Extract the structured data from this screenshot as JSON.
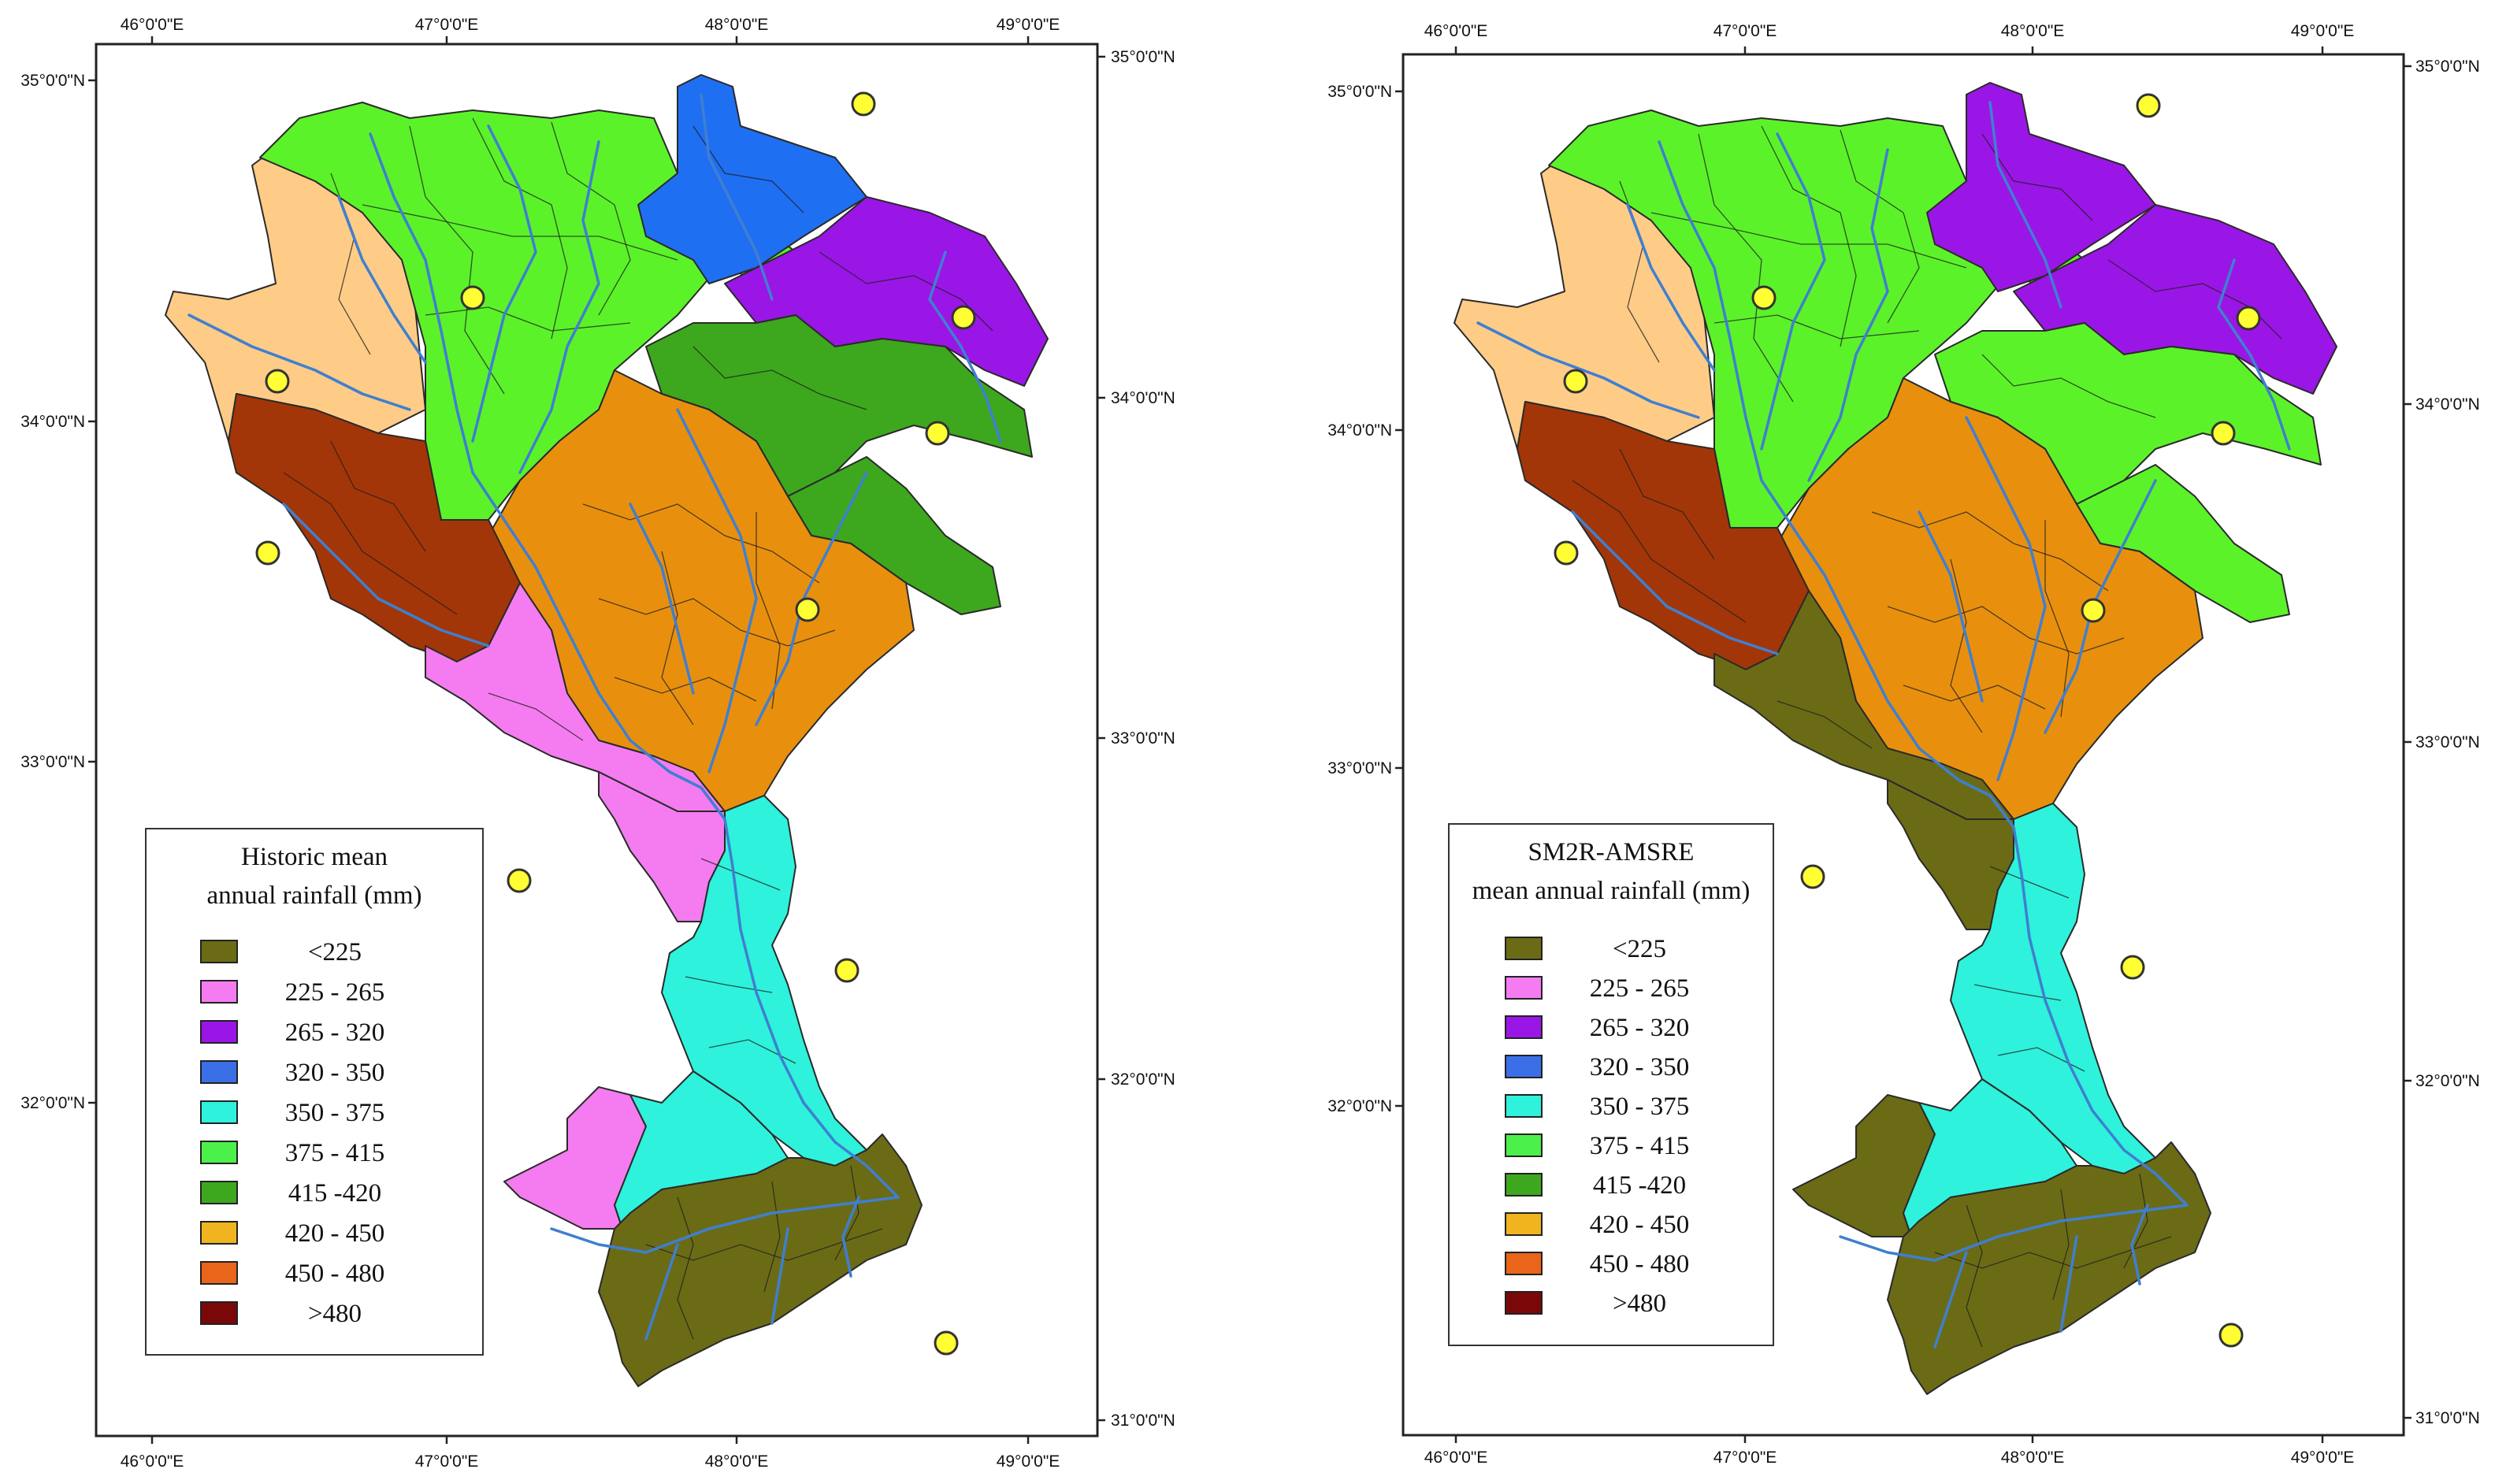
{
  "colors": {
    "<225": "#6b6b16",
    "225 - 265": "#f47cf0",
    "265 - 320": "#9a16e6",
    "320 - 350": "#1f6ff2",
    "350 - 375": "#2ef2dc",
    "375 - 415": "#5cf22a",
    "415 -420": "#3da81e",
    "420 - 450": "#e8900e",
    "450 - 480": "#e8651a",
    ">480": "#a33608",
    "hill": "#ffcc88",
    "river": "#3f7fd0",
    "station": "#ffff33"
  },
  "legend_items": [
    {
      "label": "<225",
      "color": "#6b6b16"
    },
    {
      "label": "225 - 265",
      "color": "#f47cf0"
    },
    {
      "label": "265 - 320",
      "color": "#9a16e6"
    },
    {
      "label": "320 - 350",
      "color": "#3a6fe8"
    },
    {
      "label": "350 - 375",
      "color": "#2ef2dc"
    },
    {
      "label": "375 - 415",
      "color": "#4cf04a"
    },
    {
      "label": "415 -420",
      "color": "#3da81e"
    },
    {
      "label": "420 - 450",
      "color": "#f0b41e"
    },
    {
      "label": "450 - 480",
      "color": "#e8651a"
    },
    {
      "label": ">480",
      "color": "#7a0808"
    }
  ],
  "maps": [
    {
      "legend_title": [
        "Historic mean",
        "annual rainfall (mm)"
      ],
      "top_lon_labels": [
        "46°0'0\"E",
        "47°0'0\"E",
        "48°0'0\"E",
        "49°0'0\"E"
      ],
      "bottom_lon_labels": [
        "46°0'0\"E",
        "47°0'0\"E",
        "48°0'0\"E",
        "49°0'0\"E"
      ],
      "left_lat_labels": [
        "35°0'0\"N",
        "34°0'0\"N",
        "33°0'0\"N",
        "32°0'0\"N"
      ],
      "right_lat_labels": [
        "35°0'0\"N",
        "34°0'0\"N",
        "33°0'0\"N",
        "32°0'0\"N",
        "31°0'0\"N"
      ],
      "zones": {
        "northwest_strip": "hill",
        "main_north": "375 - 415",
        "north_cap": "320 - 350",
        "northeast": "265 - 320",
        "east_mid": "415 -420",
        "east_tail": "415 -420",
        "central": "420 - 450",
        "southwest_block": ">480",
        "river_corridor": "225 - 265",
        "narrow_upper": "225 - 265",
        "south_channel": "350 - 375",
        "southwest_lobe": "225 - 265",
        "south_mid": "350 - 375",
        "south_base": "<225"
      }
    },
    {
      "legend_title": [
        "SM2R-AMSRE",
        "mean annual rainfall (mm)"
      ],
      "top_lon_labels": [
        "46°0'0\"E",
        "47°0'0\"E",
        "48°0'0\"E",
        "49°0'0\"E"
      ],
      "bottom_lon_labels": [
        "46°0'0\"E",
        "47°0'0\"E",
        "48°0'0\"E",
        "49°0'0\"E"
      ],
      "left_lat_labels": [
        "35°0'0\"N",
        "34°0'0\"N",
        "33°0'0\"N",
        "32°0'0\"N"
      ],
      "right_lat_labels": [
        "35°0'0\"N",
        "34°0'0\"N",
        "33°0'0\"N",
        "32°0'0\"N",
        "31°0'0\"N"
      ],
      "zones": {
        "northwest_strip": "hill",
        "main_north": "375 - 415",
        "north_cap": "265 - 320",
        "northeast": "265 - 320",
        "east_mid": "375 - 415",
        "east_tail": "375 - 415",
        "central": "420 - 450",
        "southwest_block": ">480",
        "river_corridor": "<225",
        "narrow_upper": "<225",
        "south_channel": "350 - 375",
        "southwest_lobe": "<225",
        "south_mid": "350 - 375",
        "south_base": "<225"
      }
    }
  ]
}
